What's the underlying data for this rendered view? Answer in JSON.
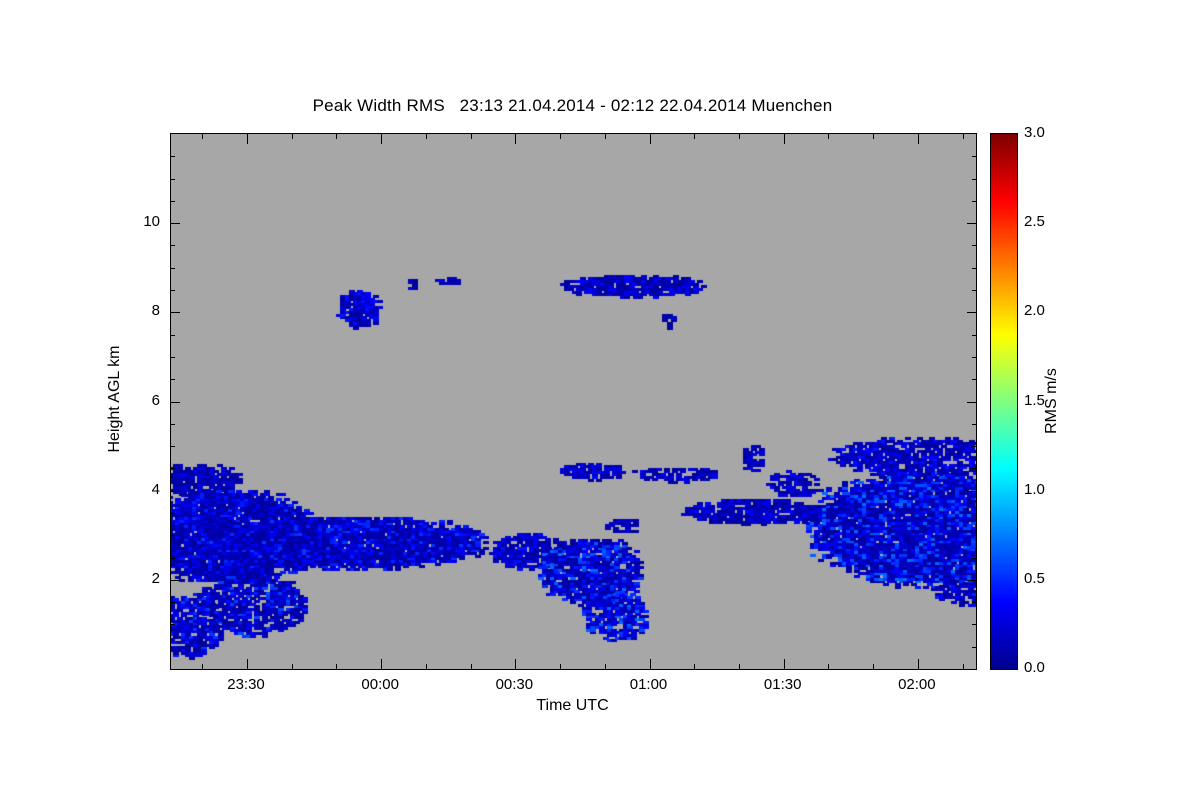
{
  "figure": {
    "background": "#ffffff",
    "text_color": "#000000"
  },
  "chart_data": {
    "type": "heatmap",
    "title": "Peak Width RMS   23:13 21.04.2014 - 02:12 22.04.2014 Muenchen",
    "time_start": "23:13 21.04.2014",
    "time_end": "02:12 22.04.2014",
    "station": "Muenchen",
    "xlabel": "Time UTC",
    "ylabel": "Height AGL km",
    "colorbar_label": "RMS m/s",
    "value_units": "m/s",
    "x_range_min": [
      0,
      180
    ],
    "y_range_km": [
      0,
      12
    ],
    "colorbar_range": [
      0,
      3
    ],
    "grid": false,
    "background_nodata_color": "#a7a7a7",
    "x_ticks": [
      {
        "t": 17,
        "label": "23:30"
      },
      {
        "t": 47,
        "label": "00:00"
      },
      {
        "t": 77,
        "label": "00:30"
      },
      {
        "t": 107,
        "label": "01:00"
      },
      {
        "t": 137,
        "label": "01:30"
      },
      {
        "t": 167,
        "label": "02:00"
      }
    ],
    "x_minor_ticks": [
      7,
      27,
      37,
      57,
      67,
      87,
      97,
      117,
      127,
      147,
      157,
      177
    ],
    "y_ticks": [
      {
        "h": 2,
        "label": "2"
      },
      {
        "h": 4,
        "label": "4"
      },
      {
        "h": 6,
        "label": "6"
      },
      {
        "h": 8,
        "label": "8"
      },
      {
        "h": 10,
        "label": "10"
      }
    ],
    "y_minor_step_km": 0.5,
    "colorbar_ticks": [
      {
        "v": 0.0,
        "label": "0.0"
      },
      {
        "v": 0.5,
        "label": "0.5"
      },
      {
        "v": 1.0,
        "label": "1.0"
      },
      {
        "v": 1.5,
        "label": "1.5"
      },
      {
        "v": 2.0,
        "label": "2.0"
      },
      {
        "v": 2.5,
        "label": "2.5"
      },
      {
        "v": 3.0,
        "label": "3.0"
      }
    ],
    "colormap": "jet",
    "colormap_stops": [
      {
        "v": 0.0,
        "color": "#00008f"
      },
      {
        "v": 0.375,
        "color": "#0000ff"
      },
      {
        "v": 1.125,
        "color": "#00ffff"
      },
      {
        "v": 1.875,
        "color": "#ffff00"
      },
      {
        "v": 2.625,
        "color": "#ff0000"
      },
      {
        "v": 3.0,
        "color": "#7f0000"
      }
    ],
    "seed": 42,
    "regions": [
      {
        "t0": -4,
        "t1": 11,
        "h0": 0.2,
        "h1": 1.7,
        "vmin": 0.05,
        "vmax": 0.55,
        "density": 0.75
      },
      {
        "t0": -5,
        "t1": 15,
        "h0": 3.8,
        "h1": 4.55,
        "vmin": 0.05,
        "vmax": 0.35,
        "density": 0.8
      },
      {
        "t0": -8,
        "t1": 32,
        "h0": 1.9,
        "h1": 4.0,
        "vmin": 0.05,
        "vmax": 0.5,
        "density": 0.95
      },
      {
        "t0": 6,
        "t1": 30,
        "h0": 0.7,
        "h1": 2.1,
        "vmin": 0.05,
        "vmax": 0.6,
        "density": 0.75
      },
      {
        "t0": 5,
        "t1": 70,
        "h0": 2.2,
        "h1": 3.4,
        "vmin": 0.05,
        "vmax": 0.55,
        "density": 0.95
      },
      {
        "t0": 71,
        "t1": 88,
        "h0": 2.2,
        "h1": 3.0,
        "vmin": 0.05,
        "vmax": 0.45,
        "density": 0.85
      },
      {
        "t0": 82,
        "t1": 105,
        "h0": 1.4,
        "h1": 2.9,
        "vmin": 0.05,
        "vmax": 0.7,
        "density": 0.9
      },
      {
        "t0": 92,
        "t1": 106,
        "h0": 0.6,
        "h1": 1.7,
        "vmin": 0.1,
        "vmax": 0.7,
        "density": 0.8
      },
      {
        "t0": 97,
        "t1": 104,
        "h0": 3.0,
        "h1": 3.35,
        "vmin": 0.05,
        "vmax": 0.3,
        "density": 0.7
      },
      {
        "t0": 87,
        "t1": 101,
        "h0": 4.2,
        "h1": 4.6,
        "vmin": 0.05,
        "vmax": 0.4,
        "density": 0.8
      },
      {
        "t0": 103,
        "t1": 122,
        "h0": 4.15,
        "h1": 4.5,
        "vmin": 0.05,
        "vmax": 0.35,
        "density": 0.7
      },
      {
        "t0": 127,
        "t1": 132,
        "h0": 4.35,
        "h1": 5.0,
        "vmin": 0.05,
        "vmax": 0.3,
        "density": 0.7
      },
      {
        "t0": 114,
        "t1": 147,
        "h0": 3.2,
        "h1": 3.8,
        "vmin": 0.05,
        "vmax": 0.4,
        "density": 0.85
      },
      {
        "t0": 133,
        "t1": 145,
        "h0": 3.8,
        "h1": 4.4,
        "vmin": 0.05,
        "vmax": 0.4,
        "density": 0.7
      },
      {
        "t0": 142,
        "t1": 195,
        "h0": 1.8,
        "h1": 4.4,
        "vmin": 0.05,
        "vmax": 0.7,
        "density": 0.95
      },
      {
        "t0": 147,
        "t1": 190,
        "h0": 4.3,
        "h1": 5.15,
        "vmin": 0.05,
        "vmax": 0.45,
        "density": 0.8
      },
      {
        "t0": 170,
        "t1": 185,
        "h0": 1.4,
        "h1": 2.0,
        "vmin": 0.05,
        "vmax": 0.5,
        "density": 0.7
      },
      {
        "t0": 37,
        "t1": 46,
        "h0": 7.6,
        "h1": 8.45,
        "vmin": 0.05,
        "vmax": 0.45,
        "density": 0.9
      },
      {
        "t0": 52,
        "t1": 54.5,
        "h0": 8.45,
        "h1": 8.75,
        "vmin": 0.05,
        "vmax": 0.3,
        "density": 0.8
      },
      {
        "t0": 59,
        "t1": 64,
        "h0": 8.55,
        "h1": 8.75,
        "vmin": 0.05,
        "vmax": 0.3,
        "density": 0.85
      },
      {
        "t0": 87,
        "t1": 119,
        "h0": 8.3,
        "h1": 8.8,
        "vmin": 0.05,
        "vmax": 0.4,
        "density": 0.9
      },
      {
        "t0": 109,
        "t1": 112,
        "h0": 7.6,
        "h1": 7.95,
        "vmin": 0.05,
        "vmax": 0.3,
        "density": 0.8
      }
    ]
  }
}
